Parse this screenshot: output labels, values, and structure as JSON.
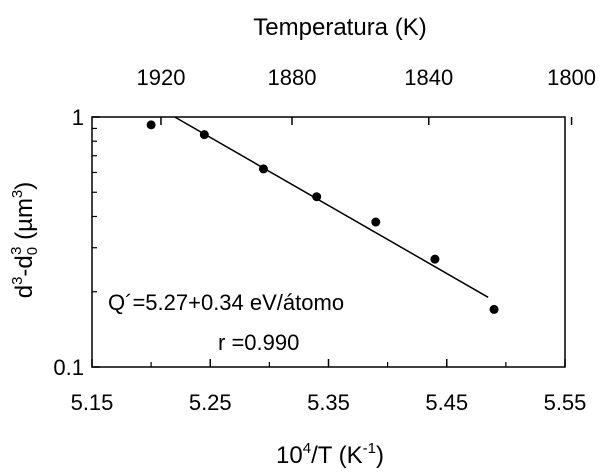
{
  "chart_data": {
    "type": "scatter",
    "x_axis": {
      "label_main": "10",
      "label_sup": "4",
      "label_mid": "/T (K",
      "label_sup2": "-1",
      "label_end": ")",
      "range": [
        5.15,
        5.55
      ],
      "ticks": [
        5.15,
        5.25,
        5.35,
        5.45,
        5.55
      ],
      "tick_labels": [
        "5.15",
        "5.25",
        "5.35",
        "5.45",
        "5.55"
      ]
    },
    "top_axis": {
      "label": "Temperatura (K)",
      "ticks": [
        1920,
        1880,
        1840,
        1800
      ],
      "tick_labels": [
        "1920",
        "1880",
        "1840",
        "1800"
      ]
    },
    "y_axis": {
      "scale": "log",
      "range": [
        0.1,
        1
      ],
      "ticks": [
        0.1,
        1
      ],
      "tick_labels": [
        "0.1",
        "1"
      ],
      "label_parts": [
        "d",
        "3",
        "-d",
        "0",
        "3",
        " (µm",
        "3",
        ")"
      ]
    },
    "points": [
      {
        "x": 5.2,
        "y": 0.93
      },
      {
        "x": 5.245,
        "y": 0.85
      },
      {
        "x": 5.295,
        "y": 0.62
      },
      {
        "x": 5.34,
        "y": 0.48
      },
      {
        "x": 5.39,
        "y": 0.38
      },
      {
        "x": 5.44,
        "y": 0.27
      },
      {
        "x": 5.49,
        "y": 0.17
      }
    ],
    "fit_line": {
      "x": [
        5.22,
        5.485
      ],
      "y": [
        1.0,
        0.19
      ]
    },
    "annotations": [
      "Q´=5.27+0.34 eV/átomo",
      "r =0.990"
    ],
    "grid": false
  }
}
